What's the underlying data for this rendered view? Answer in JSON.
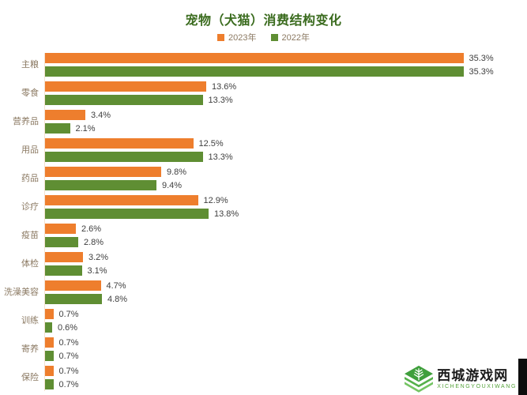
{
  "chart": {
    "title": "宠物（犬猫）消费结构变化"
  },
  "chart_data": {
    "type": "bar",
    "orientation": "horizontal",
    "title": "宠物（犬猫）消费结构变化",
    "categories": [
      "主粮",
      "零食",
      "营养品",
      "用品",
      "药品",
      "诊疗",
      "疫苗",
      "体检",
      "洗澡美容",
      "训练",
      "寄养",
      "保险"
    ],
    "series": [
      {
        "name": "2023年",
        "color": "#ee7e2d",
        "values": [
          35.3,
          13.6,
          3.4,
          12.5,
          9.8,
          12.9,
          2.6,
          3.2,
          4.7,
          0.7,
          0.7,
          0.7
        ]
      },
      {
        "name": "2022年",
        "color": "#5f8e33",
        "values": [
          35.3,
          13.3,
          2.1,
          13.3,
          9.4,
          13.8,
          2.8,
          3.1,
          4.8,
          0.6,
          0.7,
          0.7
        ]
      }
    ],
    "value_suffix": "%",
    "data_labels": true,
    "xlim": [
      0,
      40
    ],
    "grid": false,
    "legend_position": "top"
  },
  "colors": {
    "title_green": "#3a6b1e",
    "label_brown": "#8b7962",
    "value_gray": "#3f3f3f",
    "axis_line": "#f4e2d0"
  },
  "watermark": {
    "site_name": "西城游戏网",
    "site_name_latin": "XICHENGYOUXIWANG"
  }
}
